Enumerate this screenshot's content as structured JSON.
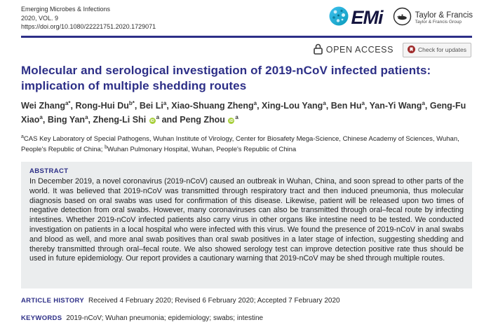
{
  "header": {
    "journal": "Emerging Microbes & Infections",
    "volume": "2020, VOL. 9",
    "doi": "https://doi.org/10.1080/22221751.2020.1729071",
    "emi_logo_text": "EMi",
    "tf_name": "Taylor & Francis",
    "tf_group": "Taylor & Francis Group"
  },
  "access_bar": {
    "open_access_label": "OPEN ACCESS",
    "check_updates_label": "Check for updates"
  },
  "article": {
    "title": "Molecular and serological investigation of 2019-nCoV infected patients: implication of multiple shedding routes",
    "authors": [
      {
        "name": "Wei Zhang",
        "sup": "a*",
        "orcid": false
      },
      {
        "name": "Rong-Hui Du",
        "sup": "b*",
        "orcid": false
      },
      {
        "name": "Bei Li",
        "sup": "a",
        "orcid": false
      },
      {
        "name": "Xiao-Shuang Zheng",
        "sup": "a",
        "orcid": false
      },
      {
        "name": "Xing-Lou Yang",
        "sup": "a",
        "orcid": false
      },
      {
        "name": "Ben Hu",
        "sup": "a",
        "orcid": false
      },
      {
        "name": "Yan-Yi Wang",
        "sup": "a",
        "orcid": false
      },
      {
        "name": "Geng-Fu Xiao",
        "sup": "a",
        "orcid": false
      },
      {
        "name": "Bing Yan",
        "sup": "a",
        "orcid": false
      },
      {
        "name": "Zheng-Li Shi",
        "sup": "a",
        "orcid": true
      },
      {
        "name": "Peng Zhou",
        "sup": "a",
        "orcid": true
      }
    ],
    "orcid_icon_text": "iD",
    "affiliations": [
      {
        "sup": "a",
        "text": "CAS Key Laboratory of Special Pathogens, Wuhan Institute of Virology, Center for Biosafety Mega-Science, Chinese Academy of Sciences, Wuhan, People's Republic of China"
      },
      {
        "sup": "b",
        "text": "Wuhan Pulmonary Hospital, Wuhan, People's Republic of China"
      }
    ]
  },
  "abstract": {
    "heading": "ABSTRACT",
    "text": "In December 2019, a novel coronavirus (2019-nCoV) caused an outbreak in Wuhan, China, and soon spread to other parts of the world. It was believed that 2019-nCoV was transmitted through respiratory tract and then induced pneumonia, thus molecular diagnosis based on oral swabs was used for confirmation of this disease. Likewise, patient will be released upon two times of negative detection from oral swabs. However, many coronaviruses can also be transmitted through oral–fecal route by infecting intestines. Whether 2019-nCoV infected patients also carry virus in other organs like intestine need to be tested. We conducted investigation on patients in a local hospital who were infected with this virus. We found the presence of 2019-nCoV in anal swabs and blood as well, and more anal swab positives than oral swab positives in a later stage of infection, suggesting shedding and thereby transmitted through oral–fecal route. We also showed serology test can improve detection positive rate thus should be used in future epidemiology. Our report provides a cautionary warning that 2019-nCoV may be shed through multiple routes."
  },
  "meta": {
    "history_label": "ARTICLE HISTORY",
    "history_text": "Received 4 February 2020; Revised 6 February 2020; Accepted 7 February 2020",
    "keywords_label": "KEYWORDS",
    "keywords_text": "2019-nCoV; Wuhan pneumonia; epidemiology; swabs; intestine"
  },
  "colors": {
    "navy": "#2d2f87",
    "orcid_green": "#a6ce39",
    "crossmark_red": "#a02c2c",
    "emi_teal_light": "#3fc1f0",
    "emi_teal_dark": "#0a9bba",
    "abstract_bg": "#ebedee"
  }
}
